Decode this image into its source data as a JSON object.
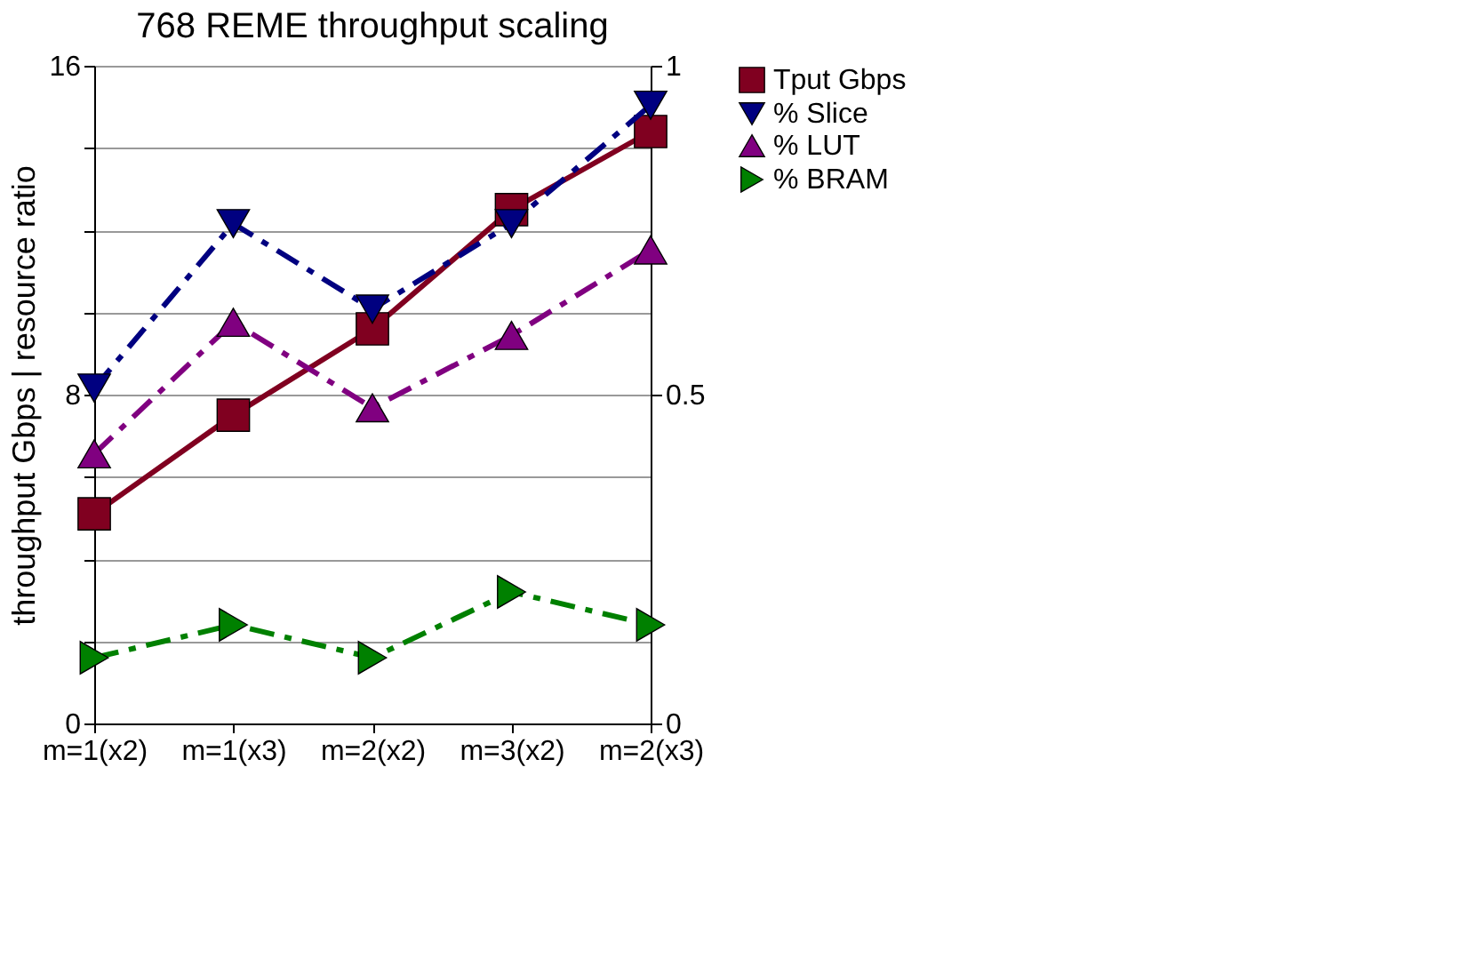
{
  "chart_data": {
    "type": "line",
    "title": "768 REME throughput scaling",
    "ylabel": "throughput Gbps | resource ratio",
    "categories": [
      "m=1(x2)",
      "m=1(x3)",
      "m=2(x2)",
      "m=3(x2)",
      "m=2(x3)"
    ],
    "series": [
      {
        "name": "Tput Gbps",
        "color": "#800020",
        "values": [
          5.1,
          7.5,
          9.6,
          12.5,
          14.4
        ],
        "marker": "square",
        "line_style": "solid"
      },
      {
        "name": "% Slice",
        "color": "#000080",
        "values": [
          0.51,
          0.76,
          0.63,
          0.76,
          0.94
        ],
        "axis": "y2",
        "marker": "triangle-down",
        "line_style": "dashed"
      },
      {
        "name": "% LUT",
        "color": "#800080",
        "values": [
          0.41,
          0.61,
          0.48,
          0.59,
          0.72
        ],
        "axis": "y2",
        "marker": "triangle-up",
        "line_style": "dashed"
      },
      {
        "name": "% BRAM",
        "color": "#008000",
        "values": [
          0.1,
          0.15,
          0.1,
          0.2,
          0.15
        ],
        "axis": "y2",
        "marker": "triangle-right",
        "line_style": "dashed"
      }
    ],
    "ylim": [
      0,
      16
    ],
    "yticks": [
      0,
      {
        "value": 2,
        "label": null
      },
      {
        "value": 4,
        "label": null
      },
      {
        "value": 6,
        "label": null
      },
      8,
      {
        "value": 10,
        "label": null
      },
      {
        "value": 12,
        "label": null
      },
      {
        "value": 14,
        "label": null
      },
      16
    ],
    "y2lim": [
      0,
      1
    ],
    "y2ticks": [
      0,
      0.5,
      1
    ],
    "grid": "y",
    "legend": "right"
  }
}
